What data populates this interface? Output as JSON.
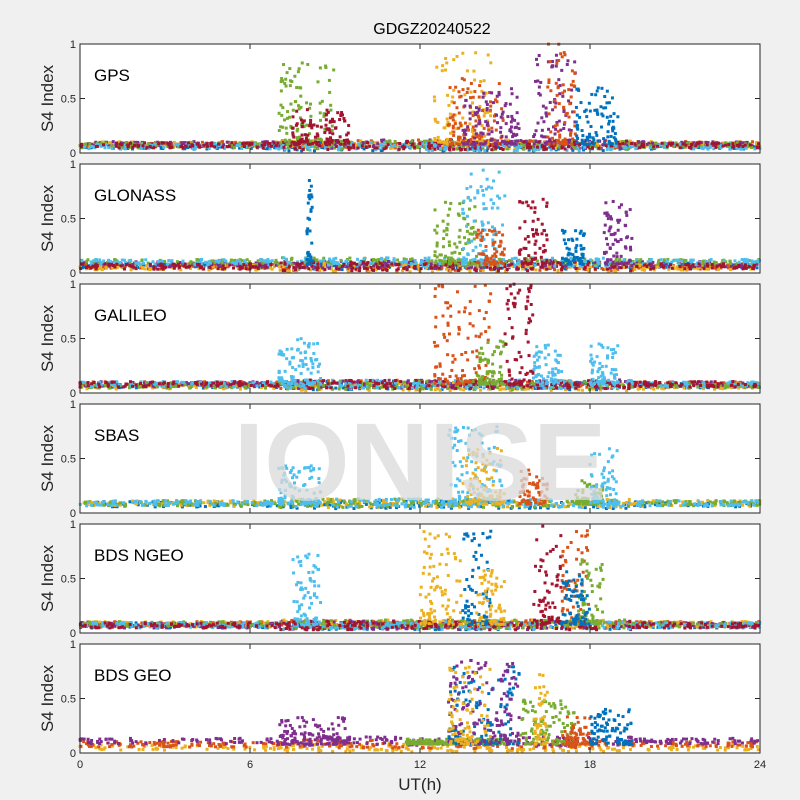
{
  "figure": {
    "title": "GDGZ20240522",
    "xlabel": "UT(h)",
    "watermark": "IONISE"
  },
  "colors": {
    "blue": "#0072BD",
    "orange": "#D95319",
    "yellow": "#EDB120",
    "purple": "#7E2F8E",
    "green": "#77AC30",
    "cyan": "#4DBEEE",
    "red": "#A2142F"
  },
  "chart_data": [
    {
      "type": "scatter",
      "title": "GPS",
      "ylabel": "S4 Index",
      "xlim": [
        0,
        24
      ],
      "ylim": [
        0,
        1
      ],
      "xticks": [
        0,
        6,
        12,
        18,
        24
      ],
      "yticks": [
        "0",
        "0.5",
        "1"
      ],
      "baseline": [
        [
          "blue",
          0.06
        ],
        [
          "orange",
          0.08
        ],
        [
          "yellow",
          0.08
        ],
        [
          "purple",
          0.08
        ],
        [
          "green",
          0.07
        ],
        [
          "cyan",
          0.06
        ],
        [
          "red",
          0.07
        ]
      ],
      "bursts": [
        [
          7,
          9,
          0.85,
          "green"
        ],
        [
          7.5,
          9.5,
          0.4,
          "red"
        ],
        [
          12.5,
          14.5,
          0.92,
          "yellow"
        ],
        [
          13,
          15,
          0.7,
          "orange"
        ],
        [
          13.5,
          15.5,
          0.6,
          "purple"
        ],
        [
          16,
          17.5,
          0.9,
          "purple"
        ],
        [
          16.5,
          17.5,
          1.0,
          "orange"
        ],
        [
          17.5,
          19,
          0.6,
          "blue"
        ]
      ]
    },
    {
      "type": "scatter",
      "title": "GLONASS",
      "ylabel": "S4 Index",
      "xlim": [
        0,
        24
      ],
      "ylim": [
        0,
        1
      ],
      "xticks": [
        0,
        6,
        12,
        18,
        24
      ],
      "yticks": [
        "0",
        "0.5",
        "1"
      ],
      "baseline": [
        [
          "blue",
          0.07
        ],
        [
          "orange",
          0.06
        ],
        [
          "yellow",
          0.05
        ],
        [
          "purple",
          0.08
        ],
        [
          "green",
          0.1
        ],
        [
          "cyan",
          0.1
        ],
        [
          "red",
          0.06
        ]
      ],
      "bursts": [
        [
          8,
          8.2,
          0.85,
          "blue"
        ],
        [
          12.5,
          14,
          0.7,
          "green"
        ],
        [
          13.5,
          15,
          0.98,
          "cyan"
        ],
        [
          14,
          15,
          0.4,
          "orange"
        ],
        [
          15.5,
          16.5,
          0.75,
          "red"
        ],
        [
          17,
          17.8,
          0.45,
          "blue"
        ],
        [
          18.5,
          19.5,
          0.7,
          "purple"
        ]
      ]
    },
    {
      "type": "scatter",
      "title": "GALILEO",
      "ylabel": "S4 Index",
      "xlim": [
        0,
        24
      ],
      "ylim": [
        0,
        1
      ],
      "xticks": [
        0,
        6,
        12,
        18,
        24
      ],
      "yticks": [
        "0",
        "0.5",
        "1"
      ],
      "baseline": [
        [
          "blue",
          0.07
        ],
        [
          "orange",
          0.08
        ],
        [
          "yellow",
          0.06
        ],
        [
          "purple",
          0.08
        ],
        [
          "green",
          0.07
        ],
        [
          "cyan",
          0.08
        ],
        [
          "red",
          0.08
        ]
      ],
      "bursts": [
        [
          7,
          8.5,
          0.5,
          "cyan"
        ],
        [
          12.5,
          14.5,
          1.0,
          "orange"
        ],
        [
          14,
          15,
          0.5,
          "green"
        ],
        [
          15,
          16,
          1.0,
          "red"
        ],
        [
          16,
          17,
          0.45,
          "cyan"
        ],
        [
          18,
          19,
          0.45,
          "cyan"
        ]
      ]
    },
    {
      "type": "scatter",
      "title": "SBAS",
      "ylabel": "S4 Index",
      "xlim": [
        0,
        24
      ],
      "ylim": [
        0,
        1
      ],
      "xticks": [
        0,
        6,
        12,
        18,
        24
      ],
      "yticks": [
        "0",
        "0.5",
        "1"
      ],
      "baseline": [
        [
          "blue",
          0.08
        ],
        [
          "yellow",
          0.09
        ],
        [
          "green",
          0.09
        ],
        [
          "cyan",
          0.09
        ]
      ],
      "bursts": [
        [
          7,
          8.5,
          0.45,
          "cyan"
        ],
        [
          13,
          15,
          0.8,
          "cyan"
        ],
        [
          13.5,
          15,
          0.6,
          "yellow"
        ],
        [
          15.5,
          16.5,
          0.4,
          "orange"
        ],
        [
          17.5,
          18.5,
          0.3,
          "green"
        ],
        [
          18,
          19,
          0.6,
          "cyan"
        ]
      ]
    },
    {
      "type": "scatter",
      "title": "BDS NGEO",
      "ylabel": "S4 Index",
      "xlim": [
        0,
        24
      ],
      "ylim": [
        0,
        1
      ],
      "xticks": [
        0,
        6,
        12,
        18,
        24
      ],
      "yticks": [
        "0",
        "0.5",
        "1"
      ],
      "baseline": [
        [
          "blue",
          0.07
        ],
        [
          "orange",
          0.08
        ],
        [
          "yellow",
          0.08
        ],
        [
          "purple",
          0.07
        ],
        [
          "green",
          0.08
        ],
        [
          "cyan",
          0.07
        ],
        [
          "red",
          0.07
        ]
      ],
      "bursts": [
        [
          7.5,
          8.5,
          0.75,
          "cyan"
        ],
        [
          12,
          13.5,
          1.0,
          "yellow"
        ],
        [
          13.5,
          14.5,
          0.95,
          "blue"
        ],
        [
          14,
          15,
          0.6,
          "yellow"
        ],
        [
          16,
          17,
          1.0,
          "red"
        ],
        [
          17,
          18,
          1.0,
          "orange"
        ],
        [
          17.5,
          18.5,
          0.7,
          "green"
        ],
        [
          17,
          18,
          0.6,
          "blue"
        ]
      ]
    },
    {
      "type": "scatter",
      "title": "BDS GEO",
      "ylabel": "S4 Index",
      "xlim": [
        0,
        24
      ],
      "ylim": [
        0,
        1
      ],
      "xticks": [
        0,
        6,
        12,
        18,
        24
      ],
      "yticks": [
        "0",
        "0.5",
        "1"
      ],
      "baseline": [
        [
          "yellow",
          0.05
        ],
        [
          "orange",
          0.08
        ],
        [
          "purple",
          0.11
        ]
      ],
      "bursts": [
        [
          7,
          9.5,
          0.33,
          "purple"
        ],
        [
          11.5,
          15,
          0.13,
          "green"
        ],
        [
          13,
          15.5,
          0.8,
          "blue"
        ],
        [
          13,
          15.5,
          0.85,
          "purple"
        ],
        [
          13,
          14.5,
          0.8,
          "yellow"
        ],
        [
          15.5,
          17.5,
          0.5,
          "green"
        ],
        [
          16,
          16.5,
          0.8,
          "yellow"
        ],
        [
          17,
          18,
          0.35,
          "orange"
        ],
        [
          18,
          19.5,
          0.4,
          "blue"
        ]
      ]
    }
  ]
}
